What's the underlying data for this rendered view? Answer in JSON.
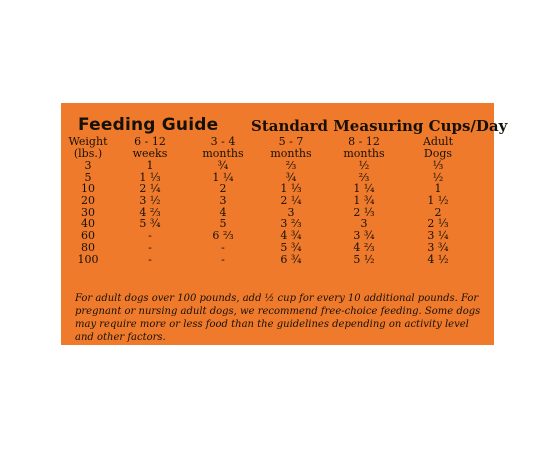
{
  "label": {
    "title": "Feeding Guide",
    "subtitle": "Standard Measuring Cups/Day",
    "colors": {
      "background": "#f07a2c",
      "text": "#161108"
    }
  },
  "table": {
    "headers": [
      [
        "Weight",
        "(lbs.)"
      ],
      [
        "6 - 12",
        "weeks"
      ],
      [
        "3 - 4",
        "months"
      ],
      [
        "5 - 7",
        "months"
      ],
      [
        "8 - 12",
        "months"
      ],
      [
        "Adult",
        "Dogs"
      ]
    ],
    "rows": [
      [
        "3",
        "1",
        "¾",
        "⅔",
        "½",
        "⅓"
      ],
      [
        "5",
        "1 ⅓",
        "1 ¼",
        "¾",
        "⅔",
        "½"
      ],
      [
        "10",
        "2 ¼",
        "2",
        "1 ⅓",
        "1 ¼",
        "1"
      ],
      [
        "20",
        "3 ½",
        "3",
        "2 ¼",
        "1 ¾",
        "1 ½"
      ],
      [
        "30",
        "4 ⅔",
        "4",
        "3",
        "2 ⅓",
        "2"
      ],
      [
        "40",
        "5 ¾",
        "5",
        "3 ⅔",
        "3",
        "2 ⅓"
      ],
      [
        "60",
        "-",
        "6 ⅔",
        "4 ¾",
        "3 ¾",
        "3 ¼"
      ],
      [
        "80",
        "-",
        "-",
        "5 ¾",
        "4 ⅔",
        "3 ¾"
      ],
      [
        "100",
        "-",
        "-",
        "6 ¾",
        "5 ½",
        "4 ½"
      ]
    ]
  },
  "note": "For adult dogs over 100 pounds, add ½ cup for every 10 additional pounds. For pregnant or nursing adult dogs, we recommend free-choice feeding. Some dogs may require more or less food than the guidelines depending on activity level and other factors."
}
